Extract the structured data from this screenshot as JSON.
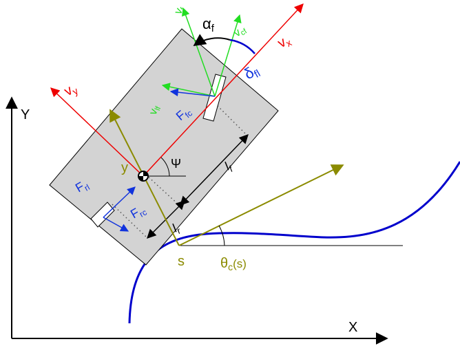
{
  "colors": {
    "body": "#d3d3d3",
    "outline": "#000000",
    "vehicle_axes": "#ee0000",
    "wheel_velocity": "#22dd22",
    "forces": "#1133dd",
    "path": "#0000cc",
    "reference": "#8b8b00",
    "dotted": "#555555"
  },
  "labels": {
    "Y": "Y",
    "X": "X",
    "vx": "vₓ",
    "vy": "vᵧ",
    "psi": "Ψ",
    "y": "y",
    "s": "s",
    "theta": "θc(s)",
    "lf": "lf",
    "lr": "lr",
    "alpha_f": "αf",
    "delta_fl": "δfl",
    "v_f": "vf",
    "v_cf": "vcf",
    "v_lf": "vlf",
    "F_fc": "Ffc",
    "F_rl": "Frl",
    "F_rc": "Frc"
  }
}
